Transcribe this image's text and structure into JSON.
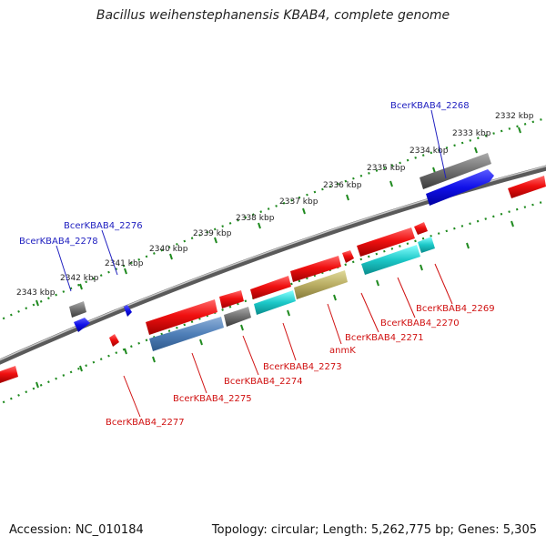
{
  "title": "Bacillus weihenstephanensis KBAB4, complete genome",
  "footer": {
    "accession": "Accession: NC_010184",
    "summary": "Topology: circular; Length: 5,262,775 bp; Genes: 5,305"
  },
  "colors": {
    "backbone": "#8a8a8a",
    "ticks": "#1f8a1f",
    "forward_label": "#2020c0",
    "reverse_label": "#d01010"
  },
  "scale_labels": [
    "2332 kbp",
    "2333 kbp",
    "2334 kbp",
    "2335 kbp",
    "2336 kbp",
    "2337 kbp",
    "2338 kbp",
    "2339 kbp",
    "2340 kbp",
    "2341 kbp",
    "2342 kbp",
    "2343 kbp"
  ],
  "gene_labels": [
    {
      "text": "BcerKBAB4_2268",
      "strand": "forward"
    },
    {
      "text": "BcerKBAB4_2276",
      "strand": "forward"
    },
    {
      "text": "BcerKBAB4_2278",
      "strand": "forward"
    },
    {
      "text": "BcerKBAB4_2269",
      "strand": "reverse"
    },
    {
      "text": "BcerKBAB4_2270",
      "strand": "reverse"
    },
    {
      "text": "BcerKBAB4_2271",
      "strand": "reverse"
    },
    {
      "text": "anmK",
      "strand": "reverse"
    },
    {
      "text": "BcerKBAB4_2273",
      "strand": "reverse"
    },
    {
      "text": "BcerKBAB4_2274",
      "strand": "reverse"
    },
    {
      "text": "BcerKBAB4_2275",
      "strand": "reverse"
    },
    {
      "text": "BcerKBAB4_2277",
      "strand": "reverse"
    }
  ]
}
